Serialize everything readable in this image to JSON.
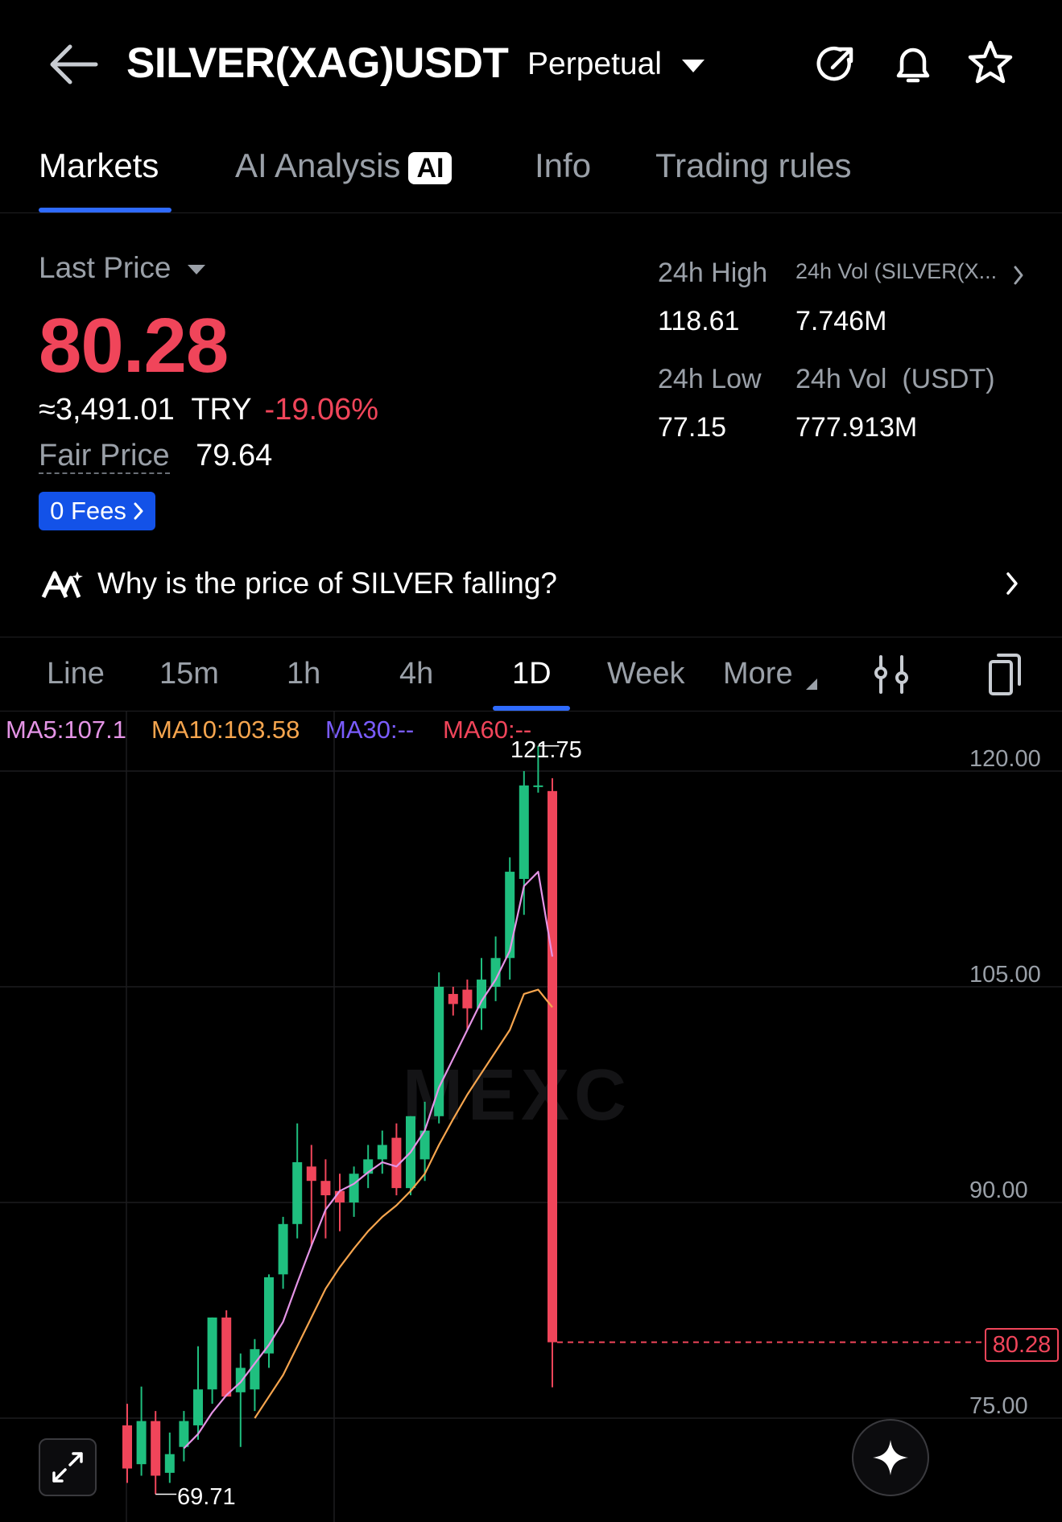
{
  "header": {
    "title": "SILVER(XAG)USDT",
    "contract_type": "Perpetual",
    "icons": [
      "back-arrow-icon",
      "share-icon",
      "bell-icon",
      "star-icon"
    ]
  },
  "tabs": {
    "markets": "Markets",
    "ai_analysis": "AI Analysis",
    "ai_badge": "AI",
    "info": "Info",
    "trading_rules": "Trading rules",
    "active": "Markets"
  },
  "price": {
    "label": "Last Price",
    "last": "80.28",
    "approx": "≈3,491.01",
    "currency": "TRY",
    "change": "-19.06%",
    "fair_label": "Fair Price",
    "fair_value": "79.64",
    "fees": "0 Fees"
  },
  "stats": {
    "high_label": "24h High",
    "high_value": "118.61",
    "vol_base_label": "24h Vol (SILVER(X...",
    "vol_base_value": "7.746M",
    "low_label": "24h Low",
    "low_value": "77.15",
    "vol_usdt_label": "24h Vol  (USDT)",
    "vol_usdt_value": "777.913M"
  },
  "ai_question": "Why is the price of SILVER falling?",
  "timeframes": {
    "line": "Line",
    "m15": "15m",
    "h1": "1h",
    "h4": "4h",
    "d1": "1D",
    "week": "Week",
    "more": "More",
    "active": "1D"
  },
  "ma": {
    "ma5": "MA5:107.1",
    "ma10": "MA10:103.58",
    "ma30": "MA30:--",
    "ma60": "MA60:--"
  },
  "chart": {
    "y_ticks": [
      "120.00",
      "105.00",
      "90.00",
      "75.00"
    ],
    "high_marker": "121.75",
    "low_marker": "69.71",
    "last_tag": "80.28",
    "watermark": "MEXC",
    "colors": {
      "up": "#1fbf7f",
      "down": "#f0455a",
      "ma5": "#e494e6",
      "ma10": "#f6a54e",
      "ma30": "#7a5cff",
      "ma60": "#f0455a"
    }
  },
  "chart_data": {
    "type": "candlestick",
    "title": "",
    "interval": "1D",
    "y_ticks": [
      120.0,
      105.0,
      90.0,
      75.0
    ],
    "last_price": 80.28,
    "high_marker": 121.75,
    "low_marker": 69.71,
    "candles": [
      {
        "o": 74.5,
        "h": 76.0,
        "l": 70.5,
        "c": 71.5
      },
      {
        "o": 71.8,
        "h": 77.2,
        "l": 71.0,
        "c": 74.8
      },
      {
        "o": 74.8,
        "h": 75.5,
        "l": 69.71,
        "c": 71.0
      },
      {
        "o": 71.2,
        "h": 74.0,
        "l": 70.5,
        "c": 72.5
      },
      {
        "o": 73.0,
        "h": 75.5,
        "l": 72.0,
        "c": 74.8
      },
      {
        "o": 74.5,
        "h": 80.0,
        "l": 73.5,
        "c": 77.0
      },
      {
        "o": 77.0,
        "h": 82.0,
        "l": 76.0,
        "c": 82.0
      },
      {
        "o": 82.0,
        "h": 82.5,
        "l": 76.5,
        "c": 76.5
      },
      {
        "o": 76.8,
        "h": 79.5,
        "l": 73.0,
        "c": 78.5
      },
      {
        "o": 77.0,
        "h": 80.5,
        "l": 75.5,
        "c": 79.8
      },
      {
        "o": 79.5,
        "h": 85.0,
        "l": 78.5,
        "c": 84.8
      },
      {
        "o": 85.0,
        "h": 89.0,
        "l": 84.0,
        "c": 88.5
      },
      {
        "o": 88.5,
        "h": 95.5,
        "l": 87.5,
        "c": 92.8
      },
      {
        "o": 92.5,
        "h": 94.0,
        "l": 87.0,
        "c": 91.5
      },
      {
        "o": 91.5,
        "h": 93.0,
        "l": 87.5,
        "c": 90.5
      },
      {
        "o": 90.8,
        "h": 92.0,
        "l": 88.0,
        "c": 90.0
      },
      {
        "o": 90.0,
        "h": 92.5,
        "l": 89.0,
        "c": 92.0
      },
      {
        "o": 92.0,
        "h": 94.0,
        "l": 91.0,
        "c": 93.0
      },
      {
        "o": 93.0,
        "h": 95.0,
        "l": 92.0,
        "c": 94.0
      },
      {
        "o": 94.5,
        "h": 95.5,
        "l": 90.5,
        "c": 91.0
      },
      {
        "o": 91.0,
        "h": 96.0,
        "l": 90.5,
        "c": 96.0
      },
      {
        "o": 93.0,
        "h": 97.0,
        "l": 91.5,
        "c": 95.0
      },
      {
        "o": 96.0,
        "h": 106.0,
        "l": 95.5,
        "c": 105.0
      },
      {
        "o": 104.5,
        "h": 105.0,
        "l": 103.0,
        "c": 103.8
      },
      {
        "o": 104.8,
        "h": 105.5,
        "l": 102.0,
        "c": 103.5
      },
      {
        "o": 103.5,
        "h": 107.0,
        "l": 102.0,
        "c": 105.5
      },
      {
        "o": 105.0,
        "h": 108.5,
        "l": 104.0,
        "c": 107.0
      },
      {
        "o": 107.0,
        "h": 114.0,
        "l": 105.5,
        "c": 113.0
      },
      {
        "o": 112.5,
        "h": 120.0,
        "l": 110.0,
        "c": 119.0
      },
      {
        "o": 119.0,
        "h": 121.75,
        "l": 118.5,
        "c": 119.0
      },
      {
        "o": 118.61,
        "h": 119.5,
        "l": 77.15,
        "c": 80.28
      }
    ],
    "ma5": [
      null,
      null,
      null,
      null,
      72.9,
      73.9,
      75.4,
      76.6,
      77.5,
      78.8,
      80.1,
      81.7,
      84.4,
      87.0,
      89.5,
      90.8,
      91.3,
      92.1,
      92.8,
      92.5,
      93.5,
      95.0,
      98.0,
      100.0,
      102.0,
      104.0,
      105.5,
      107.5,
      112.0,
      113.0,
      107.1
    ],
    "ma10": [
      null,
      null,
      null,
      null,
      null,
      null,
      null,
      null,
      null,
      75.0,
      76.5,
      78.0,
      80.0,
      82.0,
      84.0,
      85.5,
      86.8,
      88.0,
      89.0,
      89.8,
      90.8,
      92.0,
      94.0,
      95.8,
      97.5,
      99.0,
      100.5,
      102.0,
      104.5,
      104.8,
      103.58
    ]
  }
}
